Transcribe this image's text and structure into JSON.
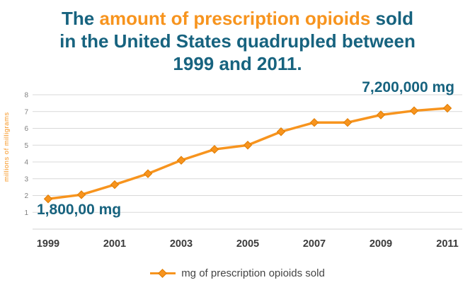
{
  "title": {
    "pre": "The ",
    "highlight": "amount of prescription opioids",
    "post": " sold in the United States quadrupled between 1999 and 2011."
  },
  "annotations": {
    "max": "7,200,000 mg",
    "min": "1,800,00 mg"
  },
  "colors": {
    "orange": "#F7941E",
    "orange_dark": "#E07C00",
    "teal": "#17637F",
    "grid": "#D9D9D9",
    "axis_text": "#808080",
    "x_label": "#3B3B3B"
  },
  "chart_data": {
    "type": "line",
    "x": [
      1999,
      2000,
      2001,
      2002,
      2003,
      2004,
      2005,
      2006,
      2007,
      2008,
      2009,
      2010,
      2011
    ],
    "series": [
      {
        "name": "mg of prescription opioids sold",
        "values": [
          1.8,
          2.05,
          2.65,
          3.3,
          4.1,
          4.75,
          5.0,
          5.8,
          6.35,
          6.35,
          6.8,
          7.05,
          7.2
        ]
      }
    ],
    "title": "The amount of prescription opioids sold in the United States quadrupled between 1999 and 2011.",
    "xlabel": "",
    "ylabel": "millions of milligrams",
    "ylim": [
      0,
      8
    ],
    "yticks": [
      1,
      2,
      3,
      4,
      5,
      6,
      7,
      8
    ],
    "xticks": [
      1999,
      2001,
      2003,
      2005,
      2007,
      2009,
      2011
    ],
    "grid": true,
    "legend_position": "bottom"
  }
}
